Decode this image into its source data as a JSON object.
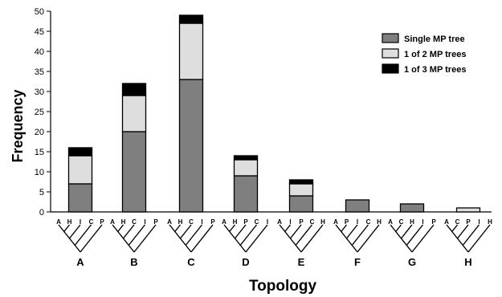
{
  "chart_data": {
    "type": "bar",
    "stacked": true,
    "categories": [
      "A",
      "B",
      "C",
      "D",
      "E",
      "F",
      "G",
      "H"
    ],
    "series": [
      {
        "name": "Single MP tree",
        "values": [
          7,
          20,
          33,
          9,
          4,
          3,
          2,
          0
        ],
        "color": "#7f7f7f"
      },
      {
        "name": "1 of 2 MP trees",
        "values": [
          7,
          9,
          14,
          4,
          3,
          0,
          0,
          1
        ],
        "color": "#dedede"
      },
      {
        "name": "1 of 3 MP trees",
        "values": [
          2,
          3,
          2,
          1,
          1,
          0,
          0,
          0
        ],
        "color": "#000000"
      }
    ],
    "xlabel": "Topology",
    "ylabel": "Frequency",
    "ylim": [
      0,
      50
    ],
    "yticks": [
      0,
      5,
      10,
      15,
      20,
      25,
      30,
      35,
      40,
      45,
      50
    ],
    "grid": false,
    "legend": "top-right",
    "topology_leaf_labels": [
      [
        "A",
        "H",
        "I",
        "C",
        "P"
      ],
      [
        "A",
        "H",
        "C",
        "I",
        "P"
      ],
      [
        "A",
        "H",
        "C",
        "I",
        "P"
      ],
      [
        "A",
        "H",
        "P",
        "C",
        "I"
      ],
      [
        "A",
        "I",
        "P",
        "C",
        "H"
      ],
      [
        "A",
        "P",
        "I",
        "C",
        "H"
      ],
      [
        "A",
        "C",
        "H",
        "I",
        "P"
      ],
      [
        "A",
        "C",
        "P",
        "I",
        "H"
      ]
    ]
  }
}
